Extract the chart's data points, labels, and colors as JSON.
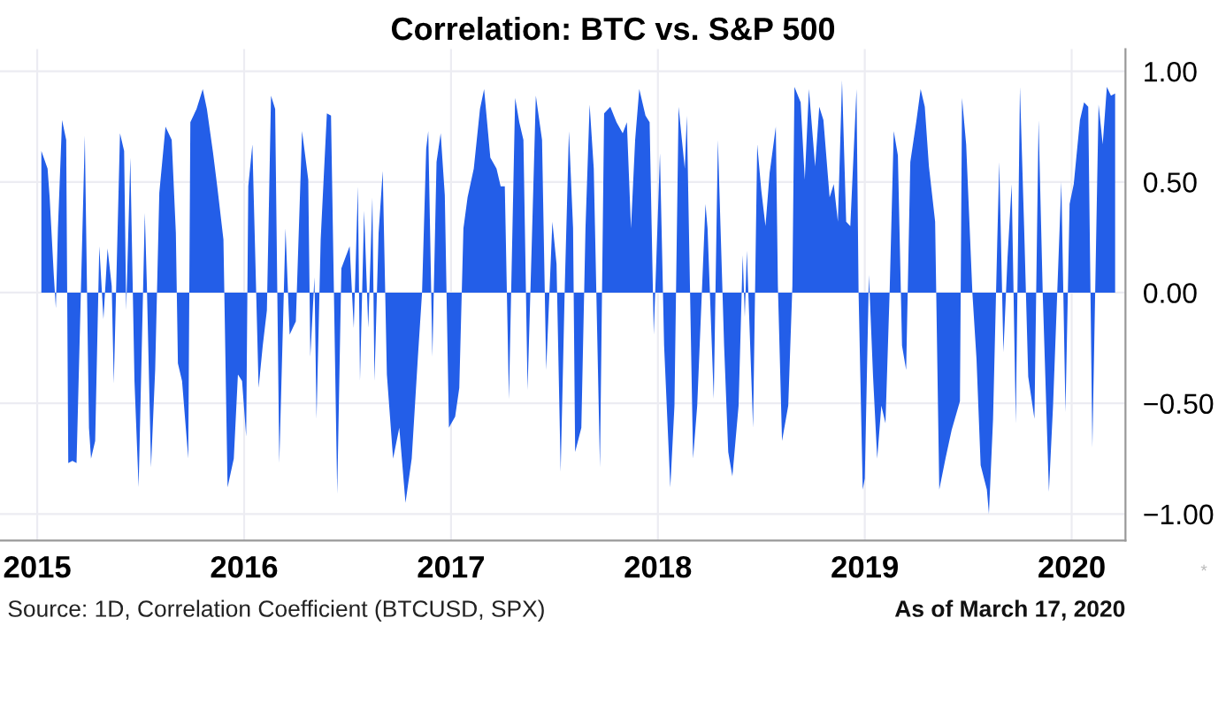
{
  "chart_data": {
    "type": "area",
    "title": "Correlation: BTC vs. S&P 500",
    "annotations": [
      "Source: 1D, Correlation Coefficient (BTCUSD, SPX)",
      "As of March 17, 2020",
      "*"
    ],
    "xlim": [
      2014.82,
      2020.26
    ],
    "xticks": [
      2015,
      2016,
      2017,
      2018,
      2019,
      2020
    ],
    "ylim": [
      -1.12,
      1.1
    ],
    "yticks": [
      {
        "value": 1,
        "label": "1.00"
      },
      {
        "value": 0.5,
        "label": "0.50"
      },
      {
        "value": 0,
        "label": "0.00"
      },
      {
        "value": -0.5,
        "label": "−0.50"
      },
      {
        "value": -1,
        "label": "−1.00"
      }
    ],
    "grid": true,
    "legend": false,
    "series": [
      {
        "color": "#235ee8",
        "x": [
          2015.02,
          2015.05,
          2015.06,
          2015.08,
          2015.09,
          2015.1,
          2015.12,
          2015.14,
          2015.15,
          2015.17,
          2015.19,
          2015.21,
          2015.23,
          2015.25,
          2015.26,
          2015.28,
          2015.3,
          2015.32,
          2015.34,
          2015.36,
          2015.37,
          2015.4,
          2015.42,
          2015.43,
          2015.45,
          2015.47,
          2015.49,
          2015.52,
          2015.53,
          2015.55,
          2015.57,
          2015.59,
          2015.62,
          2015.65,
          2015.67,
          2015.68,
          2015.7,
          2015.73,
          2015.74,
          2015.77,
          2015.8,
          2015.82,
          2015.85,
          2015.87,
          2015.9,
          2015.92,
          2015.95,
          2015.97,
          2015.99,
          2016.01,
          2016.02,
          2016.04,
          2016.07,
          2016.09,
          2016.11,
          2016.13,
          2016.15,
          2016.17,
          2016.2,
          2016.22,
          2016.25,
          2016.28,
          2016.31,
          2016.32,
          2016.34,
          2016.35,
          2016.37,
          2016.4,
          2016.42,
          2016.45,
          2016.47,
          2016.51,
          2016.53,
          2016.55,
          2016.56,
          2016.58,
          2016.6,
          2016.62,
          2016.63,
          2016.65,
          2016.67,
          2016.69,
          2016.72,
          2016.75,
          2016.78,
          2016.81,
          2016.84,
          2016.86,
          2016.88,
          2016.89,
          2016.91,
          2016.93,
          2016.95,
          2016.97,
          2016.99,
          2017.02,
          2017.04,
          2017.06,
          2017.08,
          2017.11,
          2017.14,
          2017.16,
          2017.19,
          2017.22,
          2017.24,
          2017.26,
          2017.28,
          2017.31,
          2017.33,
          2017.35,
          2017.37,
          2017.39,
          2017.41,
          2017.44,
          2017.46,
          2017.49,
          2017.51,
          2017.53,
          2017.55,
          2017.57,
          2017.59,
          2017.6,
          2017.63,
          2017.65,
          2017.67,
          2017.69,
          2017.72,
          2017.74,
          2017.77,
          2017.8,
          2017.83,
          2017.85,
          2017.87,
          2017.89,
          2017.91,
          2017.94,
          2017.96,
          2017.98,
          2018.01,
          2018.03,
          2018.06,
          2018.08,
          2018.1,
          2018.13,
          2018.14,
          2018.17,
          2018.19,
          2018.23,
          2018.24,
          2018.27,
          2018.29,
          2018.32,
          2018.34,
          2018.36,
          2018.39,
          2018.41,
          2018.42,
          2018.43,
          2018.46,
          2018.48,
          2018.5,
          2018.52,
          2018.54,
          2018.57,
          2018.58,
          2018.6,
          2018.63,
          2018.65,
          2018.66,
          2018.69,
          2018.71,
          2018.73,
          2018.76,
          2018.78,
          2018.8,
          2018.83,
          2018.85,
          2018.87,
          2018.89,
          2018.91,
          2018.93,
          2018.96,
          2018.97,
          2018.99,
          2019.0,
          2019.02,
          2019.04,
          2019.06,
          2019.08,
          2019.1,
          2019.12,
          2019.14,
          2019.16,
          2019.18,
          2019.2,
          2019.22,
          2019.25,
          2019.27,
          2019.29,
          2019.31,
          2019.34,
          2019.36,
          2019.39,
          2019.42,
          2019.46,
          2019.47,
          2019.49,
          2019.52,
          2019.54,
          2019.56,
          2019.59,
          2019.6,
          2019.62,
          2019.64,
          2019.65,
          2019.67,
          2019.69,
          2019.71,
          2019.73,
          2019.75,
          2019.77,
          2019.79,
          2019.82,
          2019.84,
          2019.86,
          2019.89,
          2019.91,
          2019.95,
          2019.97,
          2019.99,
          2020.01,
          2020.04,
          2020.06,
          2020.08,
          2020.1,
          2020.13,
          2020.15,
          2020.17,
          2020.19,
          2020.21
        ],
        "values": [
          0.64,
          0.56,
          0.43,
          0.08,
          -0.07,
          0.29,
          0.78,
          0.69,
          -0.77,
          -0.76,
          -0.77,
          -0.03,
          0.71,
          -0.61,
          -0.75,
          -0.67,
          0.21,
          -0.12,
          0.2,
          0.03,
          -0.41,
          0.72,
          0.64,
          -0.08,
          0.61,
          -0.4,
          -0.88,
          0.36,
          0.03,
          -0.79,
          -0.35,
          0.45,
          0.75,
          0.69,
          0.27,
          -0.32,
          -0.4,
          -0.75,
          0.77,
          0.83,
          0.92,
          0.83,
          0.63,
          0.48,
          0.24,
          -0.88,
          -0.75,
          -0.37,
          -0.4,
          -0.65,
          0.48,
          0.67,
          -0.43,
          -0.24,
          -0.08,
          0.89,
          0.83,
          -0.77,
          0.29,
          -0.19,
          -0.13,
          0.73,
          0.51,
          -0.29,
          0.07,
          -0.57,
          0.24,
          0.81,
          0.8,
          -0.91,
          0.11,
          0.21,
          -0.16,
          0.48,
          -0.4,
          0.37,
          -0.16,
          0.43,
          -0.4,
          0.27,
          0.55,
          -0.37,
          -0.75,
          -0.61,
          -0.95,
          -0.75,
          -0.29,
          0.0,
          0.65,
          0.73,
          -0.29,
          0.59,
          0.72,
          0.44,
          -0.61,
          -0.56,
          -0.43,
          0.29,
          0.43,
          0.56,
          0.83,
          0.92,
          0.61,
          0.56,
          0.48,
          0.48,
          -0.48,
          0.88,
          0.77,
          0.69,
          -0.44,
          0.21,
          0.89,
          0.69,
          -0.35,
          0.32,
          0.13,
          -0.81,
          0.03,
          0.73,
          0.29,
          -0.72,
          -0.61,
          0.29,
          0.85,
          0.56,
          -0.79,
          0.81,
          0.84,
          0.77,
          0.72,
          0.77,
          0.29,
          0.69,
          0.92,
          0.8,
          0.77,
          -0.19,
          0.63,
          -0.24,
          -0.88,
          -0.51,
          0.84,
          0.56,
          0.8,
          -0.75,
          -0.51,
          0.4,
          0.29,
          -0.48,
          0.69,
          -0.24,
          -0.72,
          -0.83,
          -0.51,
          0.17,
          -0.11,
          0.19,
          -0.61,
          0.67,
          0.46,
          0.3,
          0.54,
          0.75,
          0.03,
          -0.67,
          -0.51,
          0.03,
          0.93,
          0.86,
          0.51,
          0.92,
          0.57,
          0.84,
          0.78,
          0.43,
          0.49,
          0.32,
          0.96,
          0.32,
          0.3,
          0.92,
          0.0,
          -0.89,
          -0.84,
          0.08,
          -0.38,
          -0.75,
          -0.51,
          -0.59,
          0.0,
          0.73,
          0.62,
          -0.24,
          -0.35,
          0.59,
          0.78,
          0.92,
          0.84,
          0.57,
          0.32,
          -0.89,
          -0.75,
          -0.62,
          -0.49,
          0.88,
          0.67,
          0.0,
          -0.3,
          -0.78,
          -0.89,
          -1.0,
          -0.57,
          0.22,
          0.59,
          -0.27,
          0.16,
          0.49,
          -0.59,
          0.93,
          0.3,
          -0.38,
          -0.57,
          0.78,
          0.0,
          -0.9,
          -0.51,
          0.5,
          -0.54,
          0.4,
          0.49,
          0.78,
          0.86,
          0.84,
          -0.7,
          0.85,
          0.67,
          0.93,
          0.89,
          0.9
        ]
      }
    ]
  }
}
